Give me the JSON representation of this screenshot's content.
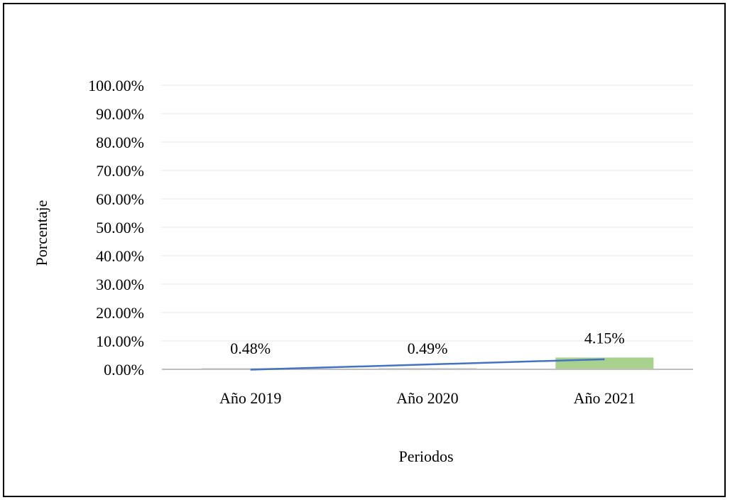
{
  "chart_data": {
    "type": "bar",
    "title": "",
    "xlabel": "Periodos",
    "ylabel": "Porcentaje",
    "categories": [
      "Año 2019",
      "Año 2020",
      "Año 2021"
    ],
    "series": [
      {
        "values": [
          0.48,
          0.49,
          4.15
        ],
        "data_labels": [
          "0.48%",
          "0.49%",
          "4.15%"
        ],
        "colors": [
          "#d9d9d9",
          "#d9d9d9",
          "#a9d18e"
        ]
      }
    ],
    "trendline": {
      "type": "linear",
      "color": "#4472c4"
    },
    "ylim": [
      0,
      100
    ],
    "yticks": [
      0,
      10,
      20,
      30,
      40,
      50,
      60,
      70,
      80,
      90,
      100
    ],
    "ytick_labels": [
      "0.00%",
      "10.00%",
      "20.00%",
      "30.00%",
      "40.00%",
      "50.00%",
      "60.00%",
      "70.00%",
      "80.00%",
      "90.00%",
      "100.00%"
    ],
    "grid": true,
    "legend": "none",
    "colors": {
      "grid": "#e6e6e6",
      "axis": "#bfbfbf"
    }
  }
}
